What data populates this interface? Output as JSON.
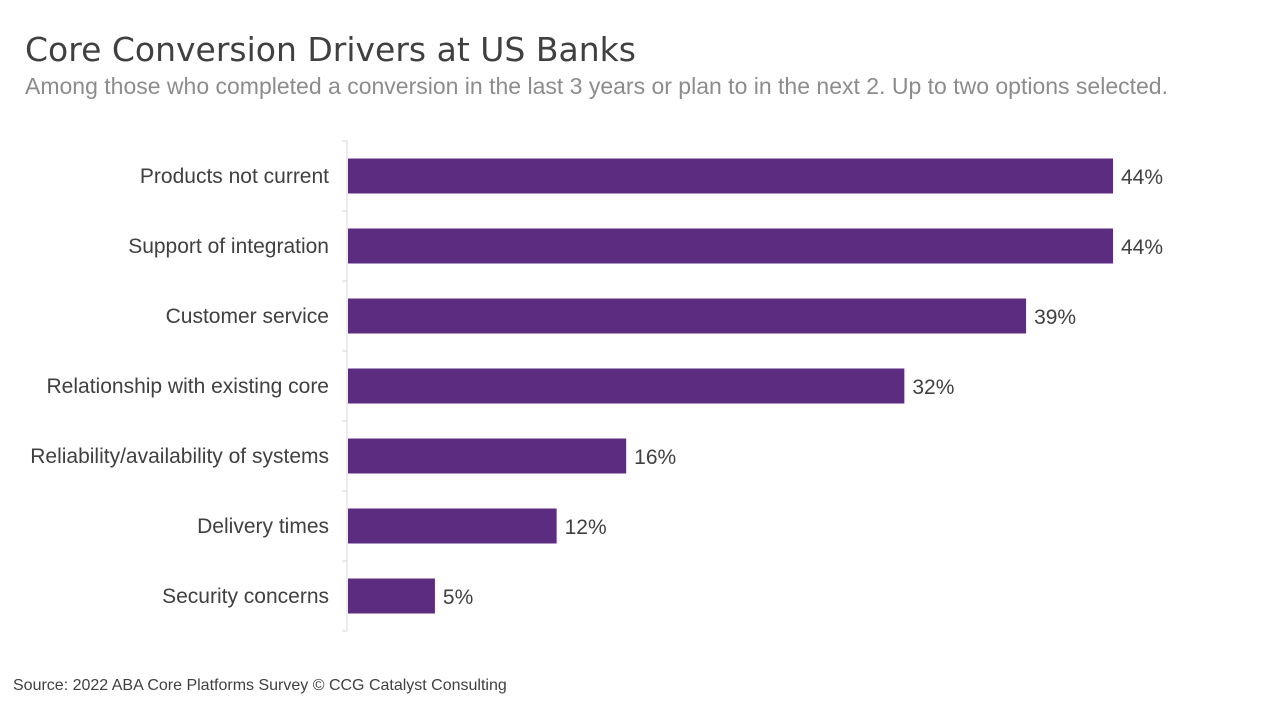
{
  "chart_data": {
    "type": "bar",
    "orientation": "horizontal",
    "title": "Core Conversion Drivers at US Banks",
    "subtitle": "Among those who completed a conversion in the last 3 years or plan to in the next 2. Up to two options selected.",
    "categories": [
      "Products not current",
      "Support of integration",
      "Customer service",
      "Relationship with existing core",
      "Reliability/availability of systems",
      "Delivery times",
      "Security concerns"
    ],
    "values": [
      44,
      44,
      39,
      32,
      16,
      12,
      5
    ],
    "value_labels": [
      "44%",
      "44%",
      "39%",
      "32%",
      "16%",
      "12%",
      "5%"
    ],
    "unit": "%",
    "xlim": [
      0,
      44
    ],
    "bar_color": "#5B2C7F",
    "axis_color": "#d9d9d9",
    "grid": false,
    "legend": "none"
  },
  "source": "Source: 2022 ABA Core Platforms Survey © CCG Catalyst Consulting"
}
